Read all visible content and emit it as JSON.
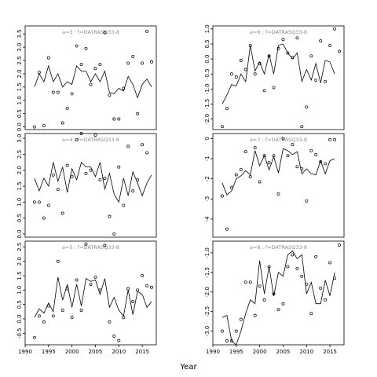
{
  "xlabel": "Year",
  "chart_data": [
    {
      "type": "line",
      "title": "a=3  :  f=DATRASQ33-8",
      "xlim": [
        1990,
        2018
      ],
      "ylim": [
        -0.1,
        3.8
      ],
      "yticks": [
        "0.0",
        "0.5",
        "1.0",
        "1.5",
        "2.0",
        "2.5",
        "3.0",
        "3.5"
      ],
      "xticks": [],
      "x": [
        1992,
        1993,
        1994,
        1995,
        1996,
        1997,
        1998,
        1999,
        2000,
        2001,
        2002,
        2003,
        2004,
        2005,
        2006,
        2007,
        2008,
        2009,
        2010,
        2011,
        2012,
        2013,
        2014,
        2015,
        2016,
        2017
      ],
      "line": [
        1.5,
        2.0,
        1.7,
        2.3,
        1.7,
        2.0,
        1.5,
        1.7,
        1.6,
        2.3,
        2.1,
        2.1,
        1.7,
        2.0,
        1.7,
        2.1,
        1.3,
        1.25,
        1.45,
        1.35,
        1.9,
        1.6,
        1.1,
        1.6,
        1.8,
        1.5
      ],
      "points": [
        0.0,
        2.05,
        0.05,
        2.6,
        1.3,
        1.3,
        0.15,
        0.7,
        1.25,
        3.05,
        2.35,
        2.95,
        1.6,
        2.2,
        2.35,
        3.55,
        1.2,
        0.3,
        0.3,
        1.45,
        2.4,
        2.65,
        0.5,
        2.4,
        3.6,
        2.45
      ]
    },
    {
      "type": "line",
      "title": "a=6  :  f=DATRASQ33-8",
      "xlim": [
        1990,
        2018
      ],
      "ylim": [
        -2.35,
        1.1
      ],
      "yticks": [
        "-2.0",
        "-1.5",
        "-1.0",
        "-0.5",
        "0.0",
        "0.5",
        "1.0"
      ],
      "xticks": [],
      "x": [
        1992,
        1993,
        1994,
        1995,
        1996,
        1997,
        1998,
        1999,
        2000,
        2001,
        2002,
        2003,
        2004,
        2005,
        2006,
        2007,
        2008,
        2009,
        2010,
        2011,
        2012,
        2013,
        2014,
        2015,
        2016,
        2017
      ],
      "line": [
        -1.5,
        -1.2,
        -0.85,
        -0.9,
        -0.5,
        -0.75,
        0.45,
        -0.4,
        -0.1,
        -0.5,
        0.15,
        -0.5,
        0.45,
        0.5,
        0.2,
        0.0,
        0.2,
        -0.75,
        -0.35,
        -0.7,
        -0.15,
        -0.8,
        -0.05,
        -0.1,
        -0.5,
        null
      ],
      "points": [
        -2.25,
        -1.65,
        -0.5,
        -0.6,
        -0.05,
        -0.35,
        0.45,
        -0.5,
        -0.15,
        -1.05,
        0.1,
        -0.95,
        0.35,
        0.65,
        0.2,
        0.05,
        0.7,
        -2.25,
        -1.6,
        0.1,
        -0.7,
        0.6,
        -0.75,
        0.45,
        1.0,
        0.25
      ]
    },
    {
      "type": "line",
      "title": "a=4  :  f=DATRASQ33-8",
      "xlim": [
        1990,
        2018
      ],
      "ylim": [
        -0.1,
        3.15
      ],
      "yticks": [
        "0.0",
        "0.5",
        "1.0",
        "1.5",
        "2.0",
        "2.5",
        "3.0"
      ],
      "xticks": [],
      "x": [
        1992,
        1993,
        1994,
        1995,
        1996,
        1997,
        1998,
        1999,
        2000,
        2001,
        2002,
        2003,
        2004,
        2005,
        2006,
        2007,
        2008,
        2009,
        2010,
        2011,
        2012,
        2013,
        2014,
        2015,
        2016,
        2017
      ],
      "line": [
        1.75,
        1.35,
        1.75,
        1.5,
        2.25,
        1.65,
        2.1,
        1.3,
        2.05,
        1.7,
        2.25,
        2.1,
        2.1,
        1.8,
        2.25,
        1.4,
        1.9,
        1.25,
        1.0,
        1.75,
        1.2,
        1.95,
        1.6,
        1.2,
        1.6,
        1.85
      ],
      "points": [
        1.0,
        1.0,
        0.5,
        0.9,
        1.85,
        1.4,
        0.65,
        2.15,
        1.8,
        2.95,
        3.15,
        1.9,
        2.0,
        3.1,
        1.7,
        1.75,
        0.55,
        0.0,
        2.1,
        0.9,
        2.75,
        1.35,
        1.7,
        2.8,
        2.55,
        null
      ]
    },
    {
      "type": "line",
      "title": "a=7  :  f=DATRASQ33-8",
      "xlim": [
        1990,
        2018
      ],
      "ylim": [
        -4.9,
        0.25
      ],
      "yticks": [
        "-4",
        "-3",
        "-2",
        "-1",
        "0"
      ],
      "xticks": [],
      "x": [
        1992,
        1993,
        1994,
        1995,
        1996,
        1997,
        1998,
        1999,
        2000,
        2001,
        2002,
        2003,
        2004,
        2005,
        2006,
        2007,
        2008,
        2009,
        2010,
        2011,
        2012,
        2013,
        2014,
        2015,
        2016,
        2017
      ],
      "line": [
        -2.2,
        -2.8,
        -2.6,
        -2.0,
        -1.85,
        -1.6,
        -1.8,
        -0.6,
        -1.35,
        -0.85,
        -1.55,
        -0.9,
        -1.7,
        -0.5,
        -0.6,
        -0.8,
        -0.65,
        -1.75,
        -1.5,
        -1.75,
        -1.8,
        -1.1,
        -1.75,
        -1.1,
        -1.0,
        null
      ],
      "points": [
        -2.85,
        -4.5,
        -2.45,
        -1.8,
        -1.55,
        -0.65,
        -1.9,
        -0.45,
        -2.15,
        -0.85,
        -1.2,
        -0.85,
        -2.75,
        0.0,
        -0.85,
        -0.3,
        -1.4,
        -1.5,
        -3.1,
        -0.6,
        -0.8,
        -1.15,
        -1.25,
        -0.05,
        -0.05,
        null
      ]
    },
    {
      "type": "line",
      "title": "a=5  :  f=DATRASQ33-8",
      "xlim": [
        1990,
        2018
      ],
      "ylim": [
        -0.9,
        2.7
      ],
      "yticks": [
        "-0.5",
        "0.0",
        "0.5",
        "1.0",
        "1.5",
        "2.0",
        "2.5"
      ],
      "xticks": [
        "1990",
        "1995",
        "2000",
        "2005",
        "2010",
        "2015"
      ],
      "x": [
        1992,
        1993,
        1994,
        1995,
        1996,
        1997,
        1998,
        1999,
        2000,
        2001,
        2002,
        2003,
        2004,
        2005,
        2006,
        2007,
        2008,
        2009,
        2010,
        2011,
        2012,
        2013,
        2014,
        2015,
        2016,
        2017
      ],
      "line": [
        0.05,
        0.35,
        0.2,
        0.55,
        0.25,
        1.45,
        0.65,
        1.2,
        0.4,
        1.2,
        0.45,
        1.4,
        1.3,
        1.35,
        0.85,
        1.4,
        0.4,
        0.75,
        0.3,
        0.1,
        1.0,
        0.15,
        0.95,
        0.85,
        0.4,
        0.6
      ],
      "points": [
        -0.65,
        0.1,
        -0.1,
        0.45,
        0.1,
        2.0,
        0.3,
        1.05,
        0.05,
        1.35,
        0.3,
        2.6,
        1.2,
        1.45,
        1.0,
        2.55,
        -0.1,
        -0.6,
        -0.75,
        0.05,
        1.05,
        0.6,
        1.0,
        1.5,
        1.15,
        1.1
      ]
    },
    {
      "type": "line",
      "title": "a=8  :  f=DATRASQ33-8",
      "xlim": [
        1990,
        2018
      ],
      "ylim": [
        -3.35,
        -0.7
      ],
      "yticks": [
        "-3.0",
        "-2.5",
        "-2.0",
        "-1.5",
        "-1.0"
      ],
      "xticks": [
        "1990",
        "1995",
        "2000",
        "2005",
        "2010",
        "2015"
      ],
      "x": [
        1992,
        1993,
        1994,
        1995,
        1996,
        1997,
        1998,
        1999,
        2000,
        2001,
        2002,
        2003,
        2004,
        2005,
        2006,
        2007,
        2008,
        2009,
        2010,
        2011,
        2012,
        2013,
        2014,
        2015,
        2016,
        2017
      ],
      "line": [
        -2.65,
        -2.6,
        -3.25,
        -3.35,
        -3.0,
        -2.55,
        -2.2,
        -2.3,
        -1.2,
        -2.05,
        -1.35,
        -2.1,
        -1.5,
        -1.6,
        -1.05,
        -0.95,
        -1.15,
        -1.05,
        -2.05,
        -1.75,
        -2.3,
        -2.3,
        -1.7,
        -2.1,
        -1.5,
        null
      ],
      "points": [
        -3.0,
        -3.25,
        -3.25,
        -3.0,
        -2.7,
        -1.75,
        -1.75,
        -2.6,
        -1.85,
        -2.2,
        -1.35,
        -2.05,
        -2.45,
        -2.3,
        -1.35,
        -1.05,
        -1.4,
        -1.6,
        -1.8,
        -2.55,
        -1.1,
        -1.9,
        -2.2,
        -1.25,
        -1.65,
        -0.8
      ]
    }
  ]
}
